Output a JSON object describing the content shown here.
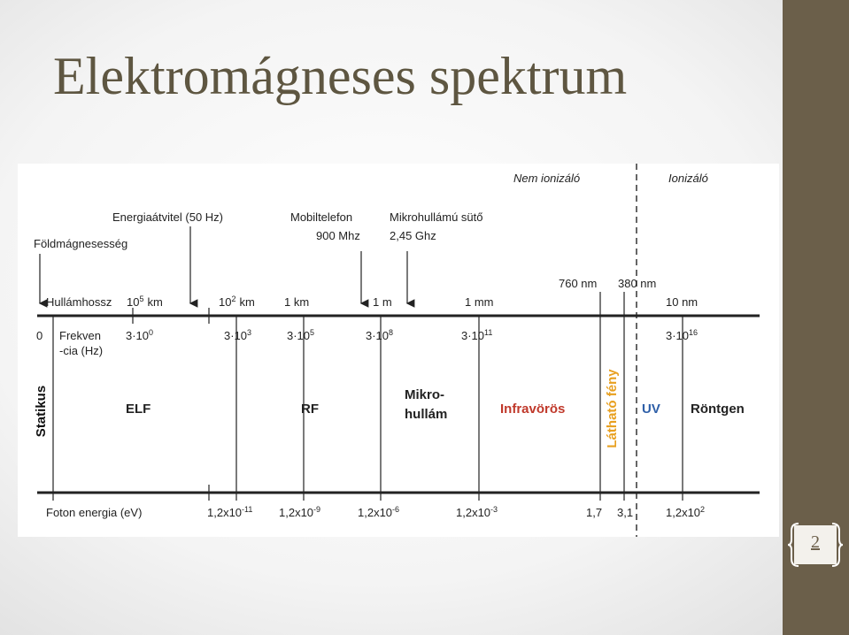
{
  "title": "Elektromágneses spektrum",
  "page_number": "2",
  "diagram": {
    "zones": [
      "Nem ionizáló",
      "Ionizáló"
    ],
    "sources": [
      "Energiaátvitel (50 Hz)",
      "Földmágnesesség",
      "Mobiltelefon",
      "900 Mhz",
      "Mikrohullámú sütő",
      "2,45 Ghz"
    ],
    "visible_bounds": [
      "760 nm",
      "380 nm"
    ],
    "wavelength": {
      "label": "Hullámhossz",
      "values": [
        {
          "base": "10",
          "sup": "5",
          "suffix": "km"
        },
        {
          "base": "10",
          "sup": "2",
          "suffix": "km"
        },
        "1 km",
        "1 m",
        "1 mm",
        "10 nm"
      ]
    },
    "frequency": {
      "zero": "0",
      "label_lines": [
        "Frekven",
        "-cia (Hz)"
      ],
      "values": [
        {
          "base": "3·10",
          "sup": "0"
        },
        {
          "base": "3·10",
          "sup": "3"
        },
        {
          "base": "3·10",
          "sup": "5"
        },
        {
          "base": "3·10",
          "sup": "8"
        },
        {
          "base": "3·10",
          "sup": "11"
        },
        {
          "base": "3·10",
          "sup": "16"
        }
      ]
    },
    "regions": [
      "Statikus",
      "ELF",
      "RF",
      "Mikro-",
      "hullám",
      "Infravörös",
      "Látható fény",
      "UV",
      "Röntgen"
    ],
    "photon_energy": {
      "label": "Foton energia (eV)",
      "values": [
        {
          "base": "1,2x10",
          "sup": "-11"
        },
        {
          "base": "1,2x10",
          "sup": "-9"
        },
        {
          "base": "1,2x10",
          "sup": "-6"
        },
        {
          "base": "1,2x10",
          "sup": "-3"
        },
        "1,7",
        "3,1",
        {
          "base": "1,2x10",
          "sup": "2"
        }
      ]
    }
  }
}
